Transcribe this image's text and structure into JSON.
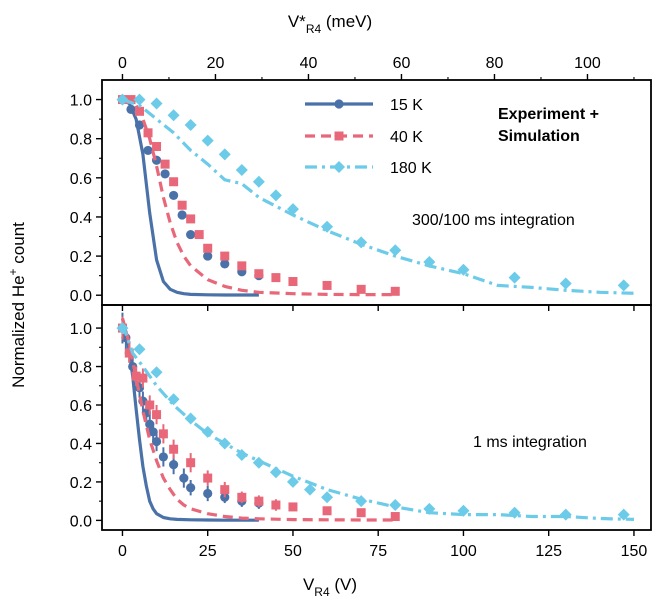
{
  "colors": {
    "s15": "#4a72a8",
    "s40": "#e8687a",
    "s180": "#6ccbe8"
  },
  "labels": {
    "top_axis_main": "V*",
    "top_axis_sub": "R4",
    "top_axis_unit": " (meV)",
    "bottom_axis_main": "V",
    "bottom_axis_sub": "R4",
    "bottom_axis_unit": " (V)",
    "ylabel_main": "Normalized He",
    "ylabel_sup": "+",
    "ylabel_tail": " count",
    "experiment": "Experiment +",
    "simulation": "Simulation",
    "top_annotation": "300/100 ms integration",
    "bottom_annotation": "1 ms integration"
  },
  "chart_data": [
    {
      "panel": "top",
      "type": "line",
      "xlim": [
        -6,
        155
      ],
      "ylim": [
        -0.05,
        1.1
      ],
      "x_ticks": [
        0,
        25,
        50,
        75,
        100,
        125,
        150
      ],
      "y_ticks": [
        "0.0",
        "0.2",
        "0.4",
        "0.6",
        "0.8",
        "1.0"
      ],
      "secondary_x": {
        "label": "V*R4 (meV)",
        "ticks": [
          "0",
          "20",
          "40",
          "60",
          "80",
          "100"
        ],
        "meV_per_V": 0.7333
      },
      "legend": {
        "position": "top-center",
        "entries": [
          "15 K",
          "40 K",
          "180 K"
        ]
      },
      "annotation": "300/100 ms integration",
      "series": [
        {
          "name": "15 K",
          "line_style": "solid",
          "marker": "circle",
          "sim_x": [
            0,
            2,
            4,
            6,
            8,
            10,
            12,
            14,
            16,
            18,
            20,
            25,
            30,
            35,
            40
          ],
          "sim_y": [
            1.0,
            0.98,
            0.9,
            0.72,
            0.42,
            0.18,
            0.07,
            0.03,
            0.015,
            0.008,
            0.004,
            0.002,
            0.001,
            0.001,
            0.001
          ],
          "exp_x": [
            0,
            2.5,
            5,
            7.5,
            10,
            12.5,
            15,
            17.5,
            20,
            25,
            30,
            35,
            40
          ],
          "exp_y": [
            1.0,
            0.95,
            0.87,
            0.74,
            0.69,
            0.62,
            0.51,
            0.41,
            0.31,
            0.2,
            0.16,
            0.12,
            0.1
          ]
        },
        {
          "name": "40 K",
          "line_style": "dashed",
          "marker": "square",
          "sim_x": [
            0,
            2,
            4,
            6,
            8,
            10,
            12,
            14,
            16,
            18,
            20,
            25,
            30,
            35,
            40,
            50,
            60,
            70,
            80
          ],
          "sim_y": [
            1.0,
            1.0,
            0.97,
            0.9,
            0.8,
            0.66,
            0.5,
            0.37,
            0.27,
            0.2,
            0.15,
            0.08,
            0.045,
            0.025,
            0.015,
            0.008,
            0.004,
            0.003,
            0.003
          ],
          "exp_x": [
            0,
            2.5,
            5,
            7.5,
            10,
            12.5,
            15,
            17.5,
            20,
            22.5,
            25,
            30,
            35,
            40,
            45,
            50,
            60,
            70,
            80
          ],
          "exp_y": [
            1.0,
            1.0,
            0.94,
            0.83,
            0.76,
            0.67,
            0.58,
            0.46,
            0.39,
            0.31,
            0.24,
            0.2,
            0.15,
            0.11,
            0.09,
            0.07,
            0.05,
            0.03,
            0.02
          ]
        },
        {
          "name": "180 K",
          "line_style": "dashdot",
          "marker": "diamond",
          "sim_x": [
            0,
            5,
            10,
            15,
            20,
            25,
            30,
            35,
            40,
            50,
            60,
            70,
            80,
            90,
            100,
            110,
            120,
            130,
            140,
            150
          ],
          "sim_y": [
            1.0,
            0.97,
            0.9,
            0.83,
            0.74,
            0.67,
            0.59,
            0.57,
            0.5,
            0.41,
            0.33,
            0.26,
            0.2,
            0.15,
            0.11,
            0.05,
            0.04,
            0.025,
            0.015,
            0.01
          ],
          "exp_x": [
            0,
            5,
            10,
            15,
            20,
            25,
            30,
            35,
            40,
            45,
            50,
            60,
            70,
            80,
            90,
            100,
            115,
            130,
            147
          ],
          "exp_y": [
            1.0,
            1.0,
            0.98,
            0.92,
            0.87,
            0.79,
            0.72,
            0.64,
            0.58,
            0.51,
            0.44,
            0.35,
            0.27,
            0.23,
            0.17,
            0.13,
            0.09,
            0.06,
            0.05
          ]
        }
      ]
    },
    {
      "panel": "bottom",
      "type": "line",
      "xlim": [
        -6,
        155
      ],
      "ylim": [
        -0.05,
        1.12
      ],
      "x_ticks": [
        0,
        25,
        50,
        75,
        100,
        125,
        150
      ],
      "y_ticks": [
        "0.0",
        "0.2",
        "0.4",
        "0.6",
        "0.8",
        "1.0"
      ],
      "xlabel": "VR4 (V)",
      "annotation": "1 ms integration",
      "series": [
        {
          "name": "15 K",
          "line_style": "solid",
          "marker": "circle",
          "sim_x": [
            0,
            1,
            2,
            3,
            4,
            5,
            6,
            7,
            8,
            9,
            10,
            12,
            14,
            16,
            20,
            25,
            30,
            40
          ],
          "sim_y": [
            1.05,
            0.98,
            0.88,
            0.75,
            0.58,
            0.42,
            0.28,
            0.18,
            0.1,
            0.06,
            0.035,
            0.015,
            0.008,
            0.005,
            0.003,
            0.002,
            0.001,
            0.001
          ],
          "exp_x": [
            0,
            1,
            2,
            3,
            4,
            5,
            6,
            7,
            8,
            9,
            10,
            12,
            15,
            18,
            20,
            25,
            30,
            35,
            40
          ],
          "exp_y": [
            1.0,
            0.95,
            0.87,
            0.8,
            0.75,
            0.69,
            0.62,
            0.56,
            0.5,
            0.46,
            0.41,
            0.33,
            0.29,
            0.22,
            0.17,
            0.14,
            0.12,
            0.1,
            0.09
          ],
          "exp_err": [
            0.08,
            0.06,
            0.05,
            0.05,
            0.05,
            0.05,
            0.05,
            0.05,
            0.06,
            0.05,
            0.05,
            0.05,
            0.05,
            0.05,
            0.04,
            0.04,
            0.03,
            0.03,
            0.03
          ]
        },
        {
          "name": "40 K",
          "line_style": "dashed",
          "marker": "square",
          "sim_x": [
            0,
            2,
            4,
            6,
            8,
            10,
            12,
            14,
            16,
            18,
            20,
            25,
            30,
            35,
            40,
            50,
            60,
            70,
            80
          ],
          "sim_y": [
            1.05,
            0.92,
            0.74,
            0.57,
            0.42,
            0.31,
            0.22,
            0.16,
            0.11,
            0.08,
            0.06,
            0.035,
            0.02,
            0.012,
            0.008,
            0.004,
            0.003,
            0.002,
            0.002
          ],
          "exp_x": [
            0,
            2,
            4,
            6,
            8,
            10,
            12,
            15,
            20,
            25,
            30,
            35,
            40,
            45,
            50,
            60,
            70,
            80
          ],
          "exp_y": [
            1.0,
            0.87,
            0.75,
            0.74,
            0.6,
            0.55,
            0.45,
            0.37,
            0.3,
            0.22,
            0.16,
            0.12,
            0.1,
            0.08,
            0.07,
            0.05,
            0.04,
            0.02
          ],
          "exp_err": [
            0.06,
            0.05,
            0.05,
            0.05,
            0.05,
            0.05,
            0.05,
            0.05,
            0.05,
            0.04,
            0.04,
            0.03,
            0.03,
            0.03,
            0.02,
            0.02,
            0.02,
            0.02
          ]
        },
        {
          "name": "180 K",
          "line_style": "dashdot",
          "marker": "diamond",
          "sim_x": [
            0,
            3,
            6,
            10,
            15,
            20,
            25,
            30,
            35,
            40,
            45,
            50,
            60,
            70,
            80,
            90,
            100,
            110,
            120,
            130,
            140,
            150
          ],
          "sim_y": [
            1.02,
            0.87,
            0.8,
            0.7,
            0.6,
            0.52,
            0.45,
            0.4,
            0.35,
            0.31,
            0.27,
            0.23,
            0.16,
            0.11,
            0.07,
            0.04,
            0.03,
            0.03,
            0.02,
            0.02,
            0.01,
            0.005
          ],
          "exp_x": [
            0,
            5,
            10,
            15,
            20,
            25,
            30,
            35,
            40,
            45,
            50,
            55,
            60,
            70,
            80,
            90,
            100,
            115,
            130,
            147
          ],
          "exp_y": [
            1.0,
            0.89,
            0.77,
            0.63,
            0.53,
            0.46,
            0.4,
            0.34,
            0.3,
            0.25,
            0.2,
            0.16,
            0.12,
            0.1,
            0.08,
            0.06,
            0.05,
            0.04,
            0.03,
            0.03
          ]
        }
      ]
    }
  ]
}
